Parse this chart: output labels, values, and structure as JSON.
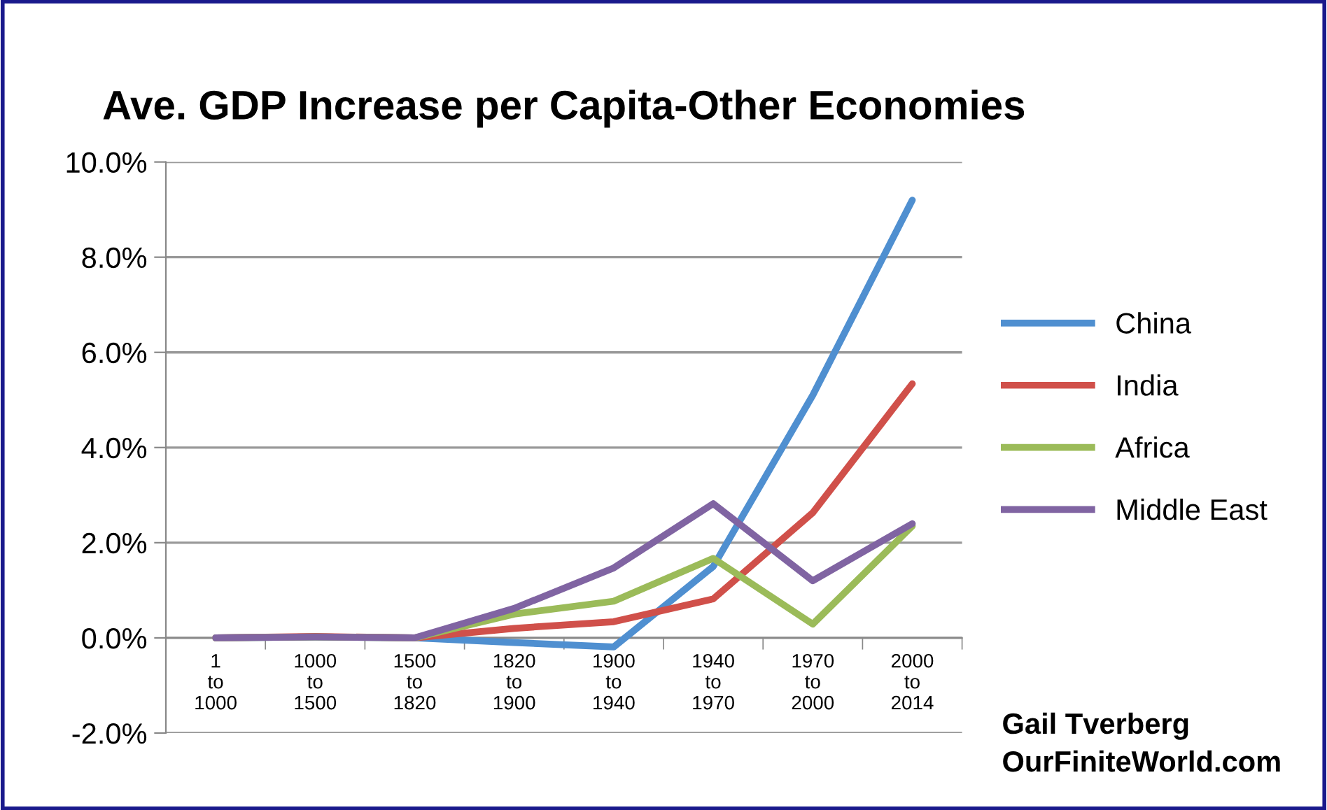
{
  "chart_data": {
    "type": "line",
    "title": "Ave. GDP Increase per Capita-Other Economies",
    "categories": [
      "1\nto\n1000",
      "1000\nto\n1500",
      "1500\nto\n1820",
      "1820\nto\n1900",
      "1900\nto\n1940",
      "1940\nto\n1970",
      "1970\nto\n2000",
      "2000\nto\n2014"
    ],
    "series": [
      {
        "name": "China",
        "color": "#4f8fd0",
        "values": [
          0,
          0.02,
          0,
          -0.1,
          -0.19,
          1.5,
          5.1,
          9.2
        ]
      },
      {
        "name": "India",
        "color": "#d0504a",
        "values": [
          0,
          0.03,
          0,
          0.2,
          0.34,
          0.82,
          2.63,
          5.34
        ]
      },
      {
        "name": "Africa",
        "color": "#9bbb59",
        "values": [
          0,
          0.02,
          0,
          0.5,
          0.77,
          1.67,
          0.29,
          2.35
        ]
      },
      {
        "name": "Middle East",
        "color": "#8064a2",
        "values": [
          0,
          0.02,
          0,
          0.62,
          1.47,
          2.82,
          1.2,
          2.4
        ]
      }
    ],
    "ylim": [
      -2,
      10
    ],
    "yticks": [
      {
        "value": -2,
        "label": "-2.0%"
      },
      {
        "value": 0,
        "label": "0.0%"
      },
      {
        "value": 2,
        "label": "2.0%"
      },
      {
        "value": 4,
        "label": "4.0%"
      },
      {
        "value": 6,
        "label": "6.0%"
      },
      {
        "value": 8,
        "label": "8.0%"
      },
      {
        "value": 10,
        "label": "10.0%"
      }
    ],
    "grid": "y",
    "legend": "right",
    "marker": "none",
    "line_style": "solid",
    "annotations": [
      "Gail Tverberg\nOurFiniteWorld.com"
    ]
  }
}
